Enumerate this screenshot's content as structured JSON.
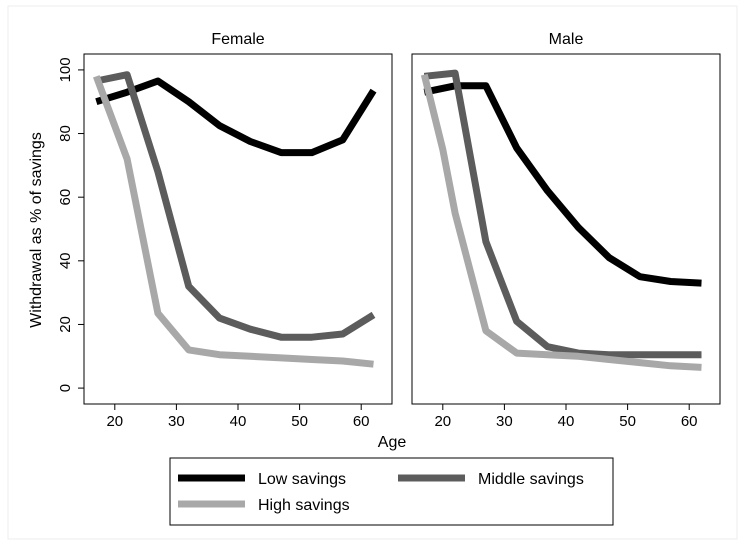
{
  "chart_data": {
    "type": "line",
    "ylabel": "Withdrawal as % of savings",
    "xlabel": "Age",
    "xlim": [
      15,
      65
    ],
    "ylim": [
      -5,
      105
    ],
    "xticks": [
      20,
      30,
      40,
      50,
      60
    ],
    "yticks": [
      0,
      20,
      40,
      60,
      80,
      100
    ],
    "grid": false,
    "legend_position": "bottom",
    "panels": [
      {
        "title": "Female",
        "series": [
          {
            "name": "Low savings",
            "color": "#000000",
            "x": [
              17,
              22,
              27,
              32,
              37,
              42,
              47,
              52,
              57,
              62
            ],
            "y": [
              90,
              93,
              96.5,
              90,
              82.5,
              77.5,
              74,
              74,
              78,
              93.5
            ]
          },
          {
            "name": "Middle savings",
            "color": "#5c5c5c",
            "x": [
              17,
              22,
              27,
              32,
              37,
              42,
              47,
              52,
              57,
              62
            ],
            "y": [
              96.5,
              98.5,
              68,
              32,
              22,
              18.5,
              16,
              16,
              17,
              23
            ]
          },
          {
            "name": "High savings",
            "color": "#a8a8a8",
            "x": [
              17,
              22,
              27,
              32,
              37,
              42,
              47,
              52,
              57,
              62
            ],
            "y": [
              98,
              72,
              23.5,
              12,
              10.5,
              10,
              9.5,
              9,
              8.5,
              7.5
            ]
          }
        ]
      },
      {
        "title": "Male",
        "series": [
          {
            "name": "Low savings",
            "color": "#000000",
            "x": [
              17,
              22,
              27,
              32,
              37,
              42,
              47,
              52,
              57,
              62
            ],
            "y": [
              93,
              95,
              95,
              75.5,
              62,
              50.5,
              41,
              35,
              33.5,
              33
            ]
          },
          {
            "name": "Middle savings",
            "color": "#5c5c5c",
            "x": [
              17,
              22,
              27,
              32,
              37,
              42,
              47,
              52,
              57,
              62
            ],
            "y": [
              98,
              99,
              46,
              21,
              13,
              11,
              10.5,
              10.5,
              10.5,
              10.5
            ]
          },
          {
            "name": "High savings",
            "color": "#a8a8a8",
            "x": [
              17,
              20,
              22,
              27,
              32,
              37,
              42,
              47,
              52,
              57,
              62
            ],
            "y": [
              98.5,
              75,
              55,
              18,
              11,
              10.5,
              10,
              9,
              8,
              7,
              6.5
            ]
          }
        ]
      }
    ],
    "legend": [
      {
        "label": "Low savings",
        "color": "#000000"
      },
      {
        "label": "Middle savings",
        "color": "#5c5c5c"
      },
      {
        "label": "High savings",
        "color": "#a8a8a8"
      }
    ]
  }
}
